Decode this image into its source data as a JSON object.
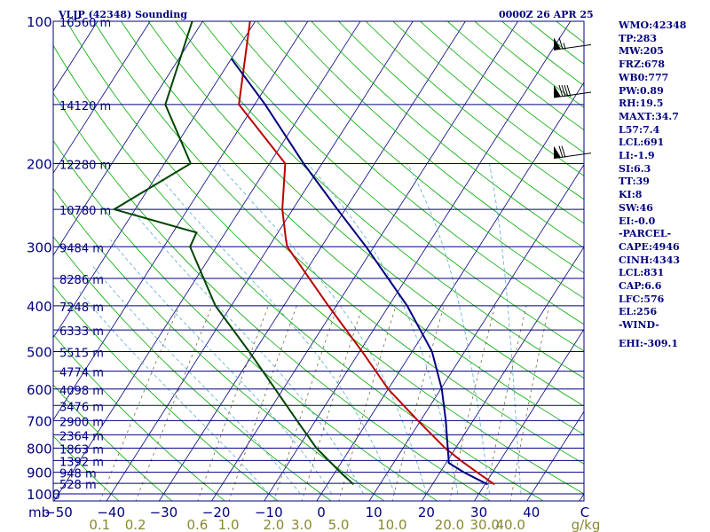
{
  "header": {
    "title": "VLJP (42348) Sounding",
    "datetime": "0000Z 26 APR 25"
  },
  "colors": {
    "background": "#ffffff",
    "isobar": "#000080",
    "frame": "#000080",
    "isotherm": "#000080",
    "dry_adiabat": "#00aa00",
    "moist_adiabat": "#5aaad0",
    "mixing_ratio": "#7a6a40",
    "temperature": "#bb0000",
    "parcel": "#000080",
    "dewpoint": "#004400",
    "axis_text": "#000080",
    "mixing_text": "#888833"
  },
  "chart_data": {
    "type": "line",
    "title": "VLJP (42348) Sounding",
    "subtitle": "0000Z 26 APR 25",
    "y_axis": {
      "unit_label": "mb",
      "scale": "log",
      "range": [
        1000,
        100
      ],
      "pressure_ticks": [
        100,
        200,
        300,
        400,
        500,
        600,
        700,
        800,
        900,
        1000
      ]
    },
    "x_axis": {
      "unit_label": "C",
      "range": [
        -50,
        50
      ],
      "temperature_ticks": [
        "−50",
        "−40",
        "−30",
        "−20",
        "−10",
        "0",
        "10",
        "20",
        "30",
        "40"
      ],
      "skew": true
    },
    "height_labels": [
      {
        "p": 100,
        "text": "16560 m"
      },
      {
        "p": 150,
        "text": "14120 m"
      },
      {
        "p": 200,
        "text": "12280 m"
      },
      {
        "p": 250,
        "text": "10780 m"
      },
      {
        "p": 300,
        "text": "9484 m"
      },
      {
        "p": 350,
        "text": "8286 m"
      },
      {
        "p": 400,
        "text": "7248 m"
      },
      {
        "p": 450,
        "text": "6333 m"
      },
      {
        "p": 500,
        "text": "5515 m"
      },
      {
        "p": 550,
        "text": "4774 m"
      },
      {
        "p": 600,
        "text": "4098 m"
      },
      {
        "p": 650,
        "text": "3476 m"
      },
      {
        "p": 700,
        "text": "2900 m"
      },
      {
        "p": 750,
        "text": "2364 m"
      },
      {
        "p": 800,
        "text": "1863 m"
      },
      {
        "p": 850,
        "text": "1392 m"
      },
      {
        "p": 900,
        "text": "948 m"
      },
      {
        "p": 950,
        "text": "528 m"
      }
    ],
    "mixing_ratio_labels": [
      {
        "w": 0.1,
        "text": "0.1"
      },
      {
        "w": 0.2,
        "text": "0.2"
      },
      {
        "w": 0.6,
        "text": "0.6"
      },
      {
        "w": 1.0,
        "text": "1.0"
      },
      {
        "w": 2.0,
        "text": "2.0"
      },
      {
        "w": 3.0,
        "text": "3.0"
      },
      {
        "w": 5.0,
        "text": "5.0"
      },
      {
        "w": 10.0,
        "text": "10.0"
      },
      {
        "w": 20.0,
        "text": "20.0"
      },
      {
        "w": 30.0,
        "text": "30.0"
      },
      {
        "w": 40.0,
        "text": "40.0"
      }
    ],
    "mixing_ratio_unit": "g/kg",
    "series": [
      {
        "key": "temperature",
        "color": "#bb0000",
        "points": [
          {
            "p": 955,
            "t": 31.8
          },
          {
            "p": 900,
            "t": 27.0
          },
          {
            "p": 850,
            "t": 22.5
          },
          {
            "p": 800,
            "t": 18.0
          },
          {
            "p": 700,
            "t": 9.5
          },
          {
            "p": 600,
            "t": 0.0
          },
          {
            "p": 500,
            "t": -9.5
          },
          {
            "p": 400,
            "t": -21.5
          },
          {
            "p": 300,
            "t": -36.5
          },
          {
            "p": 290,
            "t": -37.6
          },
          {
            "p": 250,
            "t": -42.0
          },
          {
            "p": 200,
            "t": -47.0
          },
          {
            "p": 150,
            "t": -63.0
          },
          {
            "p": 100,
            "t": -71.0
          }
        ]
      },
      {
        "key": "parcel",
        "color": "#000080",
        "points": [
          {
            "p": 955,
            "t": 30.5
          },
          {
            "p": 900,
            "t": 24.5
          },
          {
            "p": 860,
            "t": 20.5
          },
          {
            "p": 850,
            "t": 20.2
          },
          {
            "p": 800,
            "t": 18.5
          },
          {
            "p": 700,
            "t": 14.8
          },
          {
            "p": 600,
            "t": 10.2
          },
          {
            "p": 500,
            "t": 3.8
          },
          {
            "p": 400,
            "t": -6.5
          },
          {
            "p": 300,
            "t": -21.5
          },
          {
            "p": 250,
            "t": -31.5
          },
          {
            "p": 200,
            "t": -43.5
          },
          {
            "p": 150,
            "t": -58.0
          },
          {
            "p": 120,
            "t": -70.0
          }
        ]
      },
      {
        "key": "dewpoint",
        "color": "#004400",
        "points": [
          {
            "p": 955,
            "t": 5.0
          },
          {
            "p": 900,
            "t": 1.0
          },
          {
            "p": 800,
            "t": -6.5
          },
          {
            "p": 700,
            "t": -13.5
          },
          {
            "p": 600,
            "t": -21.5
          },
          {
            "p": 500,
            "t": -31.0
          },
          {
            "p": 400,
            "t": -43.0
          },
          {
            "p": 300,
            "t": -55.0
          },
          {
            "p": 280,
            "t": -55.5
          },
          {
            "p": 250,
            "t": -74.0
          },
          {
            "p": 200,
            "t": -65.0
          },
          {
            "p": 150,
            "t": -77.0
          },
          {
            "p": 100,
            "t": -82.0
          }
        ]
      }
    ],
    "wind_barbs": [
      {
        "p": 115,
        "dir": 270,
        "kt": 65
      },
      {
        "p": 145,
        "dir": 260,
        "kt": 90
      },
      {
        "p": 195,
        "dir": 270,
        "kt": 70
      }
    ],
    "grid": true
  },
  "sidebar": {
    "lines": [
      "WMO:42348",
      "TP:283",
      "MW:205",
      "FRZ:678",
      "WB0:777",
      "PW:0.89",
      "RH:19.5",
      "MAXT:34.7",
      "L57:7.4",
      "LCL:691",
      "LI:-1.9",
      "SI:6.3",
      "TT:39",
      "KI:8",
      "SW:46",
      "EI:-0.0",
      "-PARCEL-",
      "CAPE:4946",
      "CINH:4343",
      "LCL:831",
      "CAP:6.6",
      "LFC:576",
      "EL:256",
      "-WIND-"
    ],
    "ehi": "EHI:-309.1"
  }
}
